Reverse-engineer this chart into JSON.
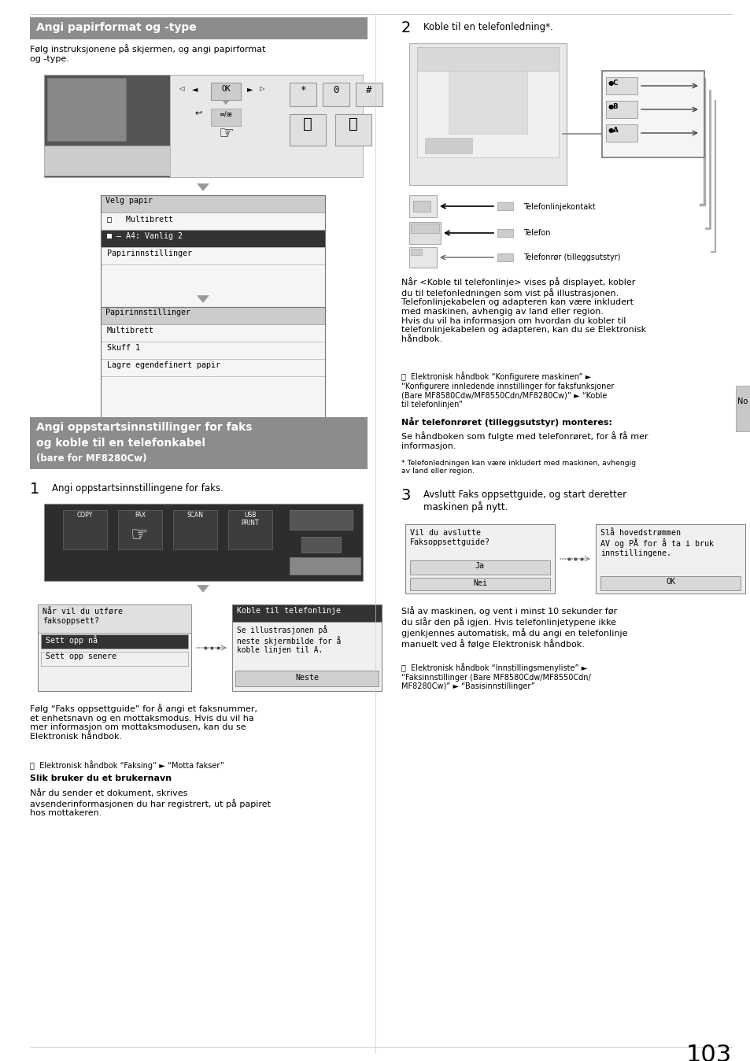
{
  "page_bg": "#ffffff",
  "section1_header": "Angi papirformat og -type",
  "section1_body": "Følg instruksjonene på skjermen, og angi papirformat\nog -type.",
  "menu1_title": "Velg papir",
  "menu1_items": [
    "□   Multibrett",
    "■ ― A4: Vanlig 2",
    "Papirinnstillinger"
  ],
  "menu1_item_selected": 1,
  "menu2_title": "Papirinnstillinger",
  "menu2_items": [
    "Multibrett",
    "Skuff 1",
    "Lagre egendefinert papir"
  ],
  "section2_header_line1": "Angi oppstartsinnstillinger for faks",
  "section2_header_line2": "og koble til en telefonkabel",
  "section2_header_sub": "(bare for MF8280Cw)",
  "step1_num": "1",
  "step1_text": "Angi oppstartsinnstillingene for faks.",
  "step1_bubble1_title": "Når vil du utføre\nfaksoppsett?",
  "step1_bubble1_items": [
    "Sett opp nå",
    "Sett opp senere"
  ],
  "step1_bubble2_title": "Koble til telefonlinje",
  "step1_bubble2_body": "Se illustrasjonen på\nneste skjermbilde for å\nkoble linjen til A.",
  "step1_bubble2_button": "Neste",
  "step1_followup": "Følg “Faks oppsettguide” for å angi et faksnummer,\net enhetsnavn og en mottaksmodus. Hvis du vil ha\nmer informasjon om mottaksmodusen, kan du se\nElektronisk håndbok.",
  "step1_elec": "ⓔ  Elektronisk håndbok “Faksing” ► “Motta fakser”",
  "step1_bold_head": "Slik bruker du et brukernavn",
  "step1_bold_body": "Når du sender et dokument, skrives\navsenderinformasjonen du har registrert, ut på papiret\nhos mottakeren.",
  "step2_num": "2",
  "step2_text": "Koble til en telefonledning*.",
  "step2_labels": [
    "Telefonlinjekontakt",
    "Telefon",
    "Telefonrør (tilleggsutstyr)"
  ],
  "step2_body": "Når <Koble til telefonlinje> vises på displayet, kobler\ndu til telefonledningen som vist på illustrasjonen.\nTelefonlinjekabelen og adapteren kan være inkludert\nmed maskinen, avhengig av land eller region.\nHvis du vil ha informasjon om hvordan du kobler til\ntelefonlinjekabelen og adapteren, kan du se Elektronisk\nhåndbok.",
  "step2_elec": "ⓔ  Elektronisk håndbok “Konfigurere maskinen” ►\n“Konfigurere innledende innstillinger for faksfunksjoner\n(Bare MF8580Cdw/MF8550Cdn/MF8280Cw)” ► “Koble\ntil telefonlinjen”",
  "step2_bold_head": "Når telefonrøret (tilleggsutstyr) monteres:",
  "step2_bold_body": "Se håndboken som fulgte med telefonrøret, for å få mer\ninformasjon.",
  "step2_footnote": "* Telefonledningen kan være inkludert med maskinen, avhengig\nav land eller region.",
  "step3_num": "3",
  "step3_text": "Avslutt Faks oppsettguide, og start deretter\nmaskinen på nytt.",
  "step3_bubble1_text": "Vil du avslutte\nFaksoppsettguide?",
  "step3_bubble1_buttons": [
    "Ja",
    "Nei"
  ],
  "step3_bubble2_text": "Slå hovedstrømmen\nAV og PÅ for å ta i bruk\ninnstillingene.",
  "step3_bubble2_button": "OK",
  "step3_body": "Slå av maskinen, og vent i minst 10 sekunder før\ndu slår den på igjen. Hvis telefonlinjetypene ikke\ngjenkjennes automatisk, må du angi en telefonlinje\nmanuelt ved å følge Elektronisk håndbok.",
  "step3_elec": "ⓔ  Elektronisk håndbok “Innstillingsmenyliste” ►\n“Faksinnstillinger (Bare MF8580Cdw/MF8550Cdn/\nMF8280Cw)” ► “Basisinnstillinger”",
  "page_number": "103",
  "no_tab": "No"
}
